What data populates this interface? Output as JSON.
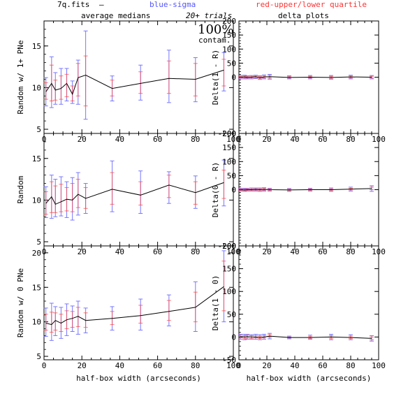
{
  "header": {
    "file_label": "7q.fits",
    "dash": "—",
    "legend_blue": "blue-sigma",
    "legend_red": "red-upper/lower quartile",
    "left_title": "average medians",
    "right_title": "delta plots",
    "trials": "20+ trials",
    "pct": "100%",
    "contam": "contam."
  },
  "colors": {
    "median_line": "#000000",
    "sigma": "#7777ff",
    "quartile": "#ff4444",
    "axis": "#000000"
  },
  "chart_data": [
    {
      "type": "line",
      "panel": "top-left",
      "ylabel": "Random w/ 1+ PNe",
      "xlabel": "",
      "xlim": [
        0,
        100
      ],
      "ylim": [
        4.5,
        18
      ],
      "xticks": [
        0,
        20,
        40,
        60,
        80,
        100
      ],
      "yticks": [
        5,
        10,
        15
      ],
      "x": [
        1,
        4,
        6,
        9,
        12,
        15,
        18,
        22,
        36,
        51,
        66,
        80,
        95
      ],
      "y": [
        9.5,
        10.5,
        9.7,
        9.9,
        10.5,
        9.2,
        11.2,
        11.5,
        9.9,
        10.5,
        11.1,
        11.0,
        12.1
      ],
      "sigma": [
        [
          7.8,
          11.2
        ],
        [
          7.6,
          13.7
        ],
        [
          8.0,
          11.8
        ],
        [
          8.0,
          12.3
        ],
        [
          8.4,
          12.3
        ],
        [
          8.1,
          10.8
        ],
        [
          8.0,
          13.3
        ],
        [
          6.2,
          16.8
        ],
        [
          8.4,
          11.4
        ],
        [
          8.5,
          12.7
        ],
        [
          8.2,
          14.5
        ],
        [
          8.3,
          13.6
        ],
        [
          9.6,
          14.2
        ]
      ],
      "quartile": [
        [
          8.6,
          10.6
        ],
        [
          8.4,
          12.7
        ],
        [
          8.5,
          10.9
        ],
        [
          8.6,
          11.4
        ],
        [
          8.9,
          11.6
        ],
        [
          8.4,
          10.2
        ],
        [
          9.0,
          12.9
        ],
        [
          7.8,
          13.8
        ],
        [
          9.0,
          10.9
        ],
        [
          9.3,
          11.9
        ],
        [
          9.3,
          13.2
        ],
        [
          9.0,
          12.9
        ],
        [
          10.2,
          13.4
        ]
      ]
    },
    {
      "type": "line",
      "panel": "middle-left",
      "ylabel": "Random",
      "xlabel": "",
      "xlim": [
        0,
        100
      ],
      "ylim": [
        4.5,
        18
      ],
      "xticks": [
        0,
        20,
        40,
        60,
        80,
        100
      ],
      "yticks": [
        5,
        10,
        15
      ],
      "x": [
        1,
        4,
        6,
        9,
        12,
        15,
        18,
        22,
        36,
        51,
        66,
        80,
        95
      ],
      "y": [
        9.6,
        10.4,
        9.5,
        9.8,
        10.1,
        10.0,
        10.7,
        10.2,
        11.3,
        10.6,
        11.8,
        10.9,
        12.1
      ],
      "sigma": [
        [
          7.9,
          11.6
        ],
        [
          7.8,
          13.0
        ],
        [
          8.0,
          12.5
        ],
        [
          8.1,
          12.8
        ],
        [
          7.9,
          12.2
        ],
        [
          7.6,
          12.7
        ],
        [
          8.2,
          13.3
        ],
        [
          8.4,
          12.0
        ],
        [
          8.6,
          14.7
        ],
        [
          8.4,
          13.5
        ],
        [
          9.6,
          13.4
        ],
        [
          9.0,
          12.9
        ],
        [
          9.3,
          14.8
        ]
      ],
      "quartile": [
        [
          8.3,
          11.0
        ],
        [
          8.5,
          12.2
        ],
        [
          8.5,
          11.7
        ],
        [
          8.6,
          11.9
        ],
        [
          8.7,
          11.5
        ],
        [
          8.6,
          12.0
        ],
        [
          9.1,
          12.5
        ],
        [
          9.0,
          11.5
        ],
        [
          9.5,
          13.3
        ],
        [
          9.4,
          12.2
        ],
        [
          10.3,
          13.0
        ],
        [
          9.5,
          12.2
        ],
        [
          10.2,
          13.6
        ]
      ]
    },
    {
      "type": "line",
      "panel": "bottom-left",
      "ylabel": "Random w/ 0 PNe",
      "xlabel": "half-box width (arcseconds)",
      "xlim": [
        0,
        100
      ],
      "ylim": [
        4.5,
        21
      ],
      "xticks": [
        0,
        20,
        40,
        60,
        80,
        100
      ],
      "yticks": [
        5,
        10,
        15,
        20
      ],
      "x": [
        1,
        4,
        6,
        9,
        12,
        15,
        18,
        22,
        36,
        51,
        66,
        80,
        95
      ],
      "y": [
        9.8,
        9.6,
        10.2,
        9.8,
        10.3,
        10.5,
        10.8,
        10.2,
        10.5,
        10.9,
        11.5,
        12.1,
        15.1
      ],
      "sigma": [
        [
          7.9,
          12.0
        ],
        [
          7.3,
          12.7
        ],
        [
          8.0,
          12.2
        ],
        [
          7.6,
          12.1
        ],
        [
          8.0,
          12.6
        ],
        [
          8.6,
          12.3
        ],
        [
          8.2,
          13.0
        ],
        [
          8.4,
          12.0
        ],
        [
          8.8,
          12.2
        ],
        [
          8.8,
          13.3
        ],
        [
          9.4,
          13.9
        ],
        [
          8.6,
          15.8
        ],
        [
          10.0,
          20.3
        ]
      ],
      "quartile": [
        [
          8.8,
          11.1
        ],
        [
          8.5,
          11.4
        ],
        [
          8.8,
          11.3
        ],
        [
          8.6,
          11.1
        ],
        [
          9.0,
          11.6
        ],
        [
          9.2,
          11.5
        ],
        [
          9.3,
          12.1
        ],
        [
          9.2,
          11.3
        ],
        [
          9.6,
          11.5
        ],
        [
          9.8,
          12.4
        ],
        [
          10.2,
          13.1
        ],
        [
          10.0,
          14.3
        ],
        [
          11.6,
          18.8
        ]
      ]
    },
    {
      "type": "line",
      "panel": "top-right",
      "ylabel": "Delta(1 - R)",
      "xlabel": "",
      "xlim": [
        0,
        100
      ],
      "ylim": [
        -200,
        200
      ],
      "xticks": [
        0,
        20,
        40,
        60,
        80,
        100
      ],
      "yticks": [
        -200,
        0,
        50,
        100,
        150,
        200
      ],
      "x": [
        1,
        4,
        6,
        9,
        12,
        15,
        18,
        22,
        36,
        51,
        66,
        80,
        95
      ],
      "y": [
        0,
        1,
        -1,
        0,
        2,
        -2,
        1,
        2,
        -1,
        0,
        -1,
        1,
        0
      ],
      "sigma": [
        [
          -6,
          6
        ],
        [
          -6,
          7
        ],
        [
          -6,
          5
        ],
        [
          -6,
          6
        ],
        [
          -5,
          7
        ],
        [
          -8,
          5
        ],
        [
          -6,
          8
        ],
        [
          -7,
          10
        ],
        [
          -6,
          5
        ],
        [
          -6,
          6
        ],
        [
          -7,
          6
        ],
        [
          -6,
          7
        ],
        [
          -6,
          6
        ]
      ],
      "quartile": [
        [
          -3,
          3
        ],
        [
          -3,
          4
        ],
        [
          -3,
          2
        ],
        [
          -3,
          3
        ],
        [
          -2,
          4
        ],
        [
          -4,
          2
        ],
        [
          -3,
          4
        ],
        [
          -3,
          6
        ],
        [
          -3,
          2
        ],
        [
          -3,
          3
        ],
        [
          -4,
          3
        ],
        [
          -3,
          4
        ],
        [
          -3,
          3
        ]
      ]
    },
    {
      "type": "line",
      "panel": "middle-right",
      "ylabel": "Delta(0 - R)",
      "xlabel": "",
      "xlim": [
        0,
        100
      ],
      "ylim": [
        -200,
        200
      ],
      "xticks": [
        0,
        20,
        40,
        60,
        80,
        100
      ],
      "yticks": [
        -200,
        0,
        50,
        100,
        150,
        200
      ],
      "x": [
        1,
        4,
        6,
        9,
        12,
        15,
        18,
        22,
        36,
        51,
        66,
        80,
        95
      ],
      "y": [
        0,
        -1,
        0,
        0,
        1,
        0,
        1,
        0,
        -1,
        0,
        0,
        2,
        4
      ],
      "sigma": [
        [
          -5,
          5
        ],
        [
          -6,
          5
        ],
        [
          -5,
          5
        ],
        [
          -5,
          6
        ],
        [
          -5,
          6
        ],
        [
          -6,
          6
        ],
        [
          -5,
          7
        ],
        [
          -5,
          5
        ],
        [
          -6,
          4
        ],
        [
          -5,
          5
        ],
        [
          -6,
          6
        ],
        [
          -5,
          9
        ],
        [
          -6,
          14
        ]
      ],
      "quartile": [
        [
          -3,
          3
        ],
        [
          -3,
          2
        ],
        [
          -3,
          3
        ],
        [
          -3,
          3
        ],
        [
          -2,
          3
        ],
        [
          -3,
          3
        ],
        [
          -2,
          4
        ],
        [
          -3,
          3
        ],
        [
          -3,
          2
        ],
        [
          -3,
          3
        ],
        [
          -3,
          3
        ],
        [
          -1,
          5
        ],
        [
          0,
          9
        ]
      ]
    },
    {
      "type": "line",
      "panel": "bottom-right",
      "ylabel": "Delta(1 - 0)",
      "xlabel": "half-box width (arcseconds)",
      "xlim": [
        0,
        100
      ],
      "ylim": [
        -50,
        200
      ],
      "xticks": [
        0,
        20,
        40,
        60,
        80,
        100
      ],
      "yticks": [
        -50,
        0,
        50,
        100,
        150,
        200
      ],
      "x": [
        1,
        4,
        6,
        9,
        12,
        15,
        18,
        22,
        36,
        51,
        66,
        80,
        95
      ],
      "y": [
        1,
        0,
        1,
        0,
        0,
        -1,
        0,
        2,
        -1,
        -1,
        0,
        -1,
        -3
      ],
      "sigma": [
        [
          -5,
          6
        ],
        [
          -6,
          6
        ],
        [
          -5,
          6
        ],
        [
          -5,
          5
        ],
        [
          -5,
          6
        ],
        [
          -6,
          5
        ],
        [
          -5,
          6
        ],
        [
          -4,
          8
        ],
        [
          -4,
          2
        ],
        [
          -5,
          4
        ],
        [
          -6,
          6
        ],
        [
          -6,
          5
        ],
        [
          -9,
          3
        ]
      ],
      "quartile": [
        [
          -2,
          4
        ],
        [
          -3,
          3
        ],
        [
          -2,
          4
        ],
        [
          -3,
          3
        ],
        [
          -2,
          3
        ],
        [
          -3,
          2
        ],
        [
          -2,
          3
        ],
        [
          0,
          5
        ],
        [
          -2,
          0
        ],
        [
          -3,
          1
        ],
        [
          -3,
          3
        ],
        [
          -3,
          2
        ],
        [
          -6,
          0
        ]
      ]
    }
  ]
}
